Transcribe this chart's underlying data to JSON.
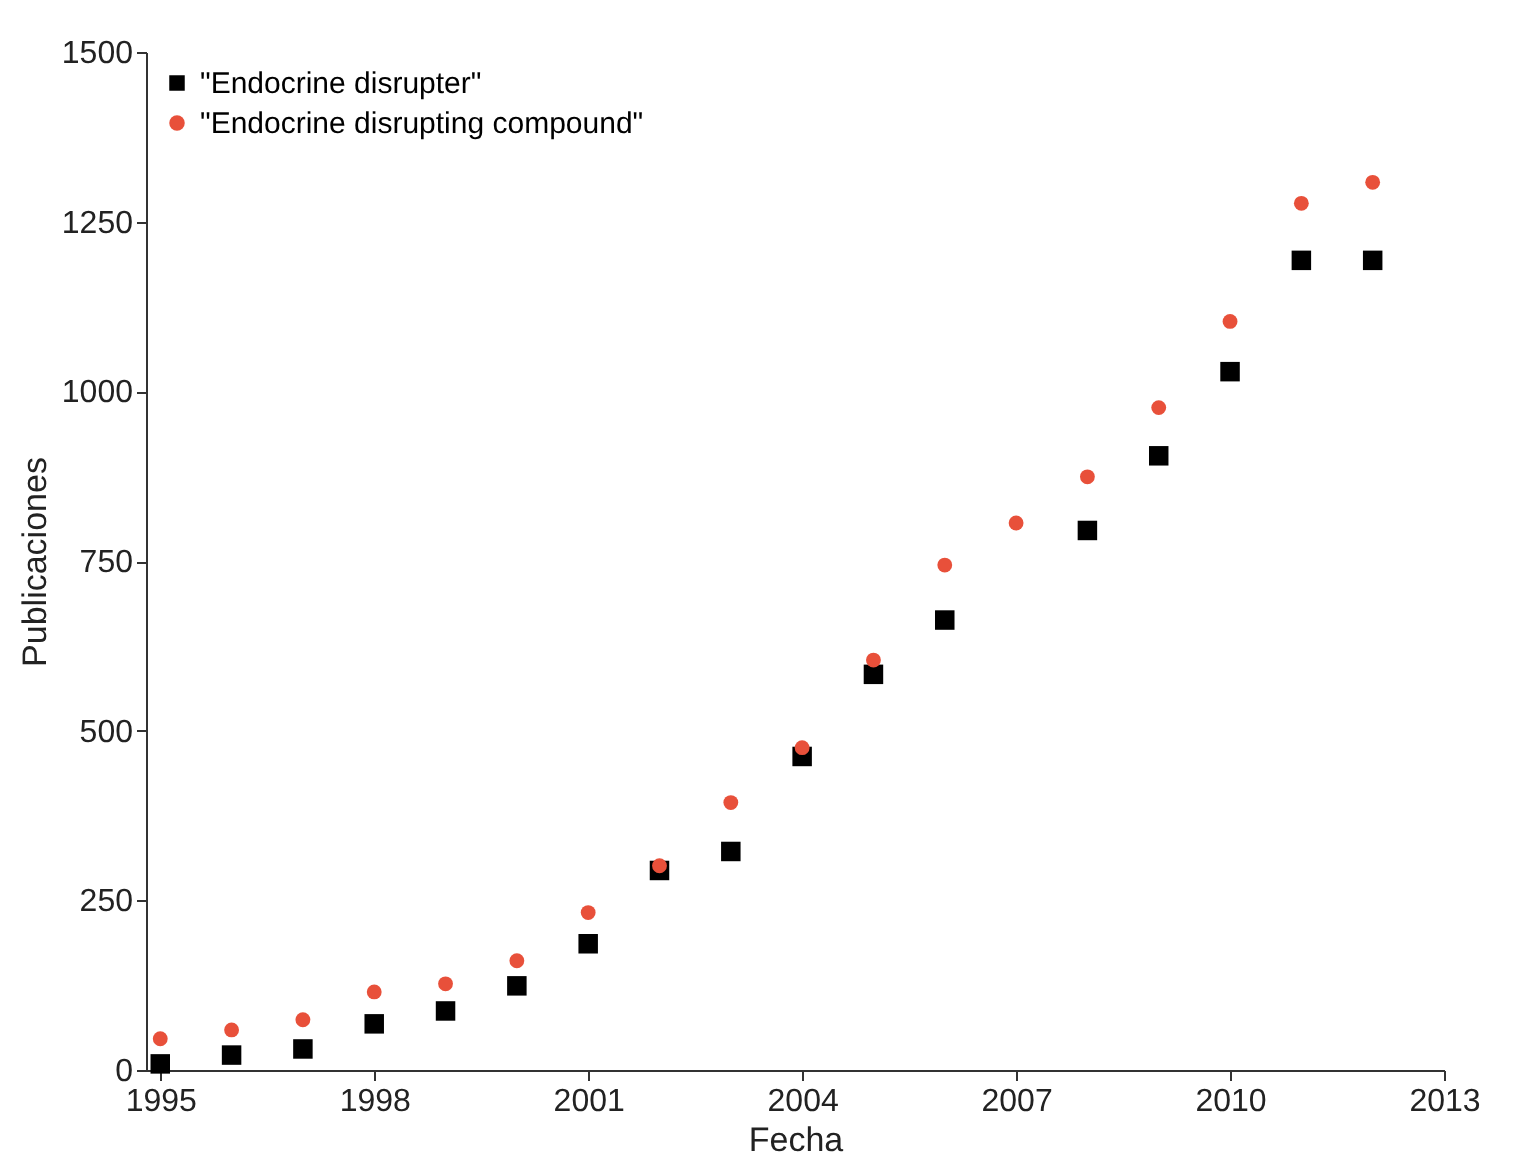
{
  "chart_data": {
    "type": "scatter",
    "xlabel": "Fecha",
    "ylabel": "Publicaciones",
    "x": [
      1995,
      1996,
      1997,
      1998,
      1999,
      2000,
      2001,
      2002,
      2003,
      2004,
      2005,
      2006,
      2007,
      2008,
      2009,
      2010,
      2011,
      2012
    ],
    "series": [
      {
        "name": "\"Endocrine disrupter\"",
        "color": "#000000",
        "marker": "square",
        "values": [
          9,
          22,
          31,
          68,
          87,
          124,
          186,
          294,
          322,
          462,
          583,
          663,
          null,
          795,
          905,
          1029,
          1193,
          1193
        ]
      },
      {
        "name": "\"Endocrine disrupting compound\"",
        "color": "#e8503a",
        "marker": "circle",
        "values": [
          46,
          59,
          74,
          115,
          127,
          161,
          232,
          301,
          394,
          475,
          604,
          744,
          806,
          874,
          976,
          1103,
          1277,
          1308
        ]
      }
    ],
    "xlim": [
      1994.8,
      2013
    ],
    "xticks": [
      1995,
      1998,
      2001,
      2004,
      2007,
      2010,
      2013
    ],
    "ylim": [
      0,
      1500
    ],
    "yticks": [
      0,
      250,
      500,
      750,
      1000,
      1250,
      1500
    ],
    "grid": false,
    "legend": "top left"
  }
}
